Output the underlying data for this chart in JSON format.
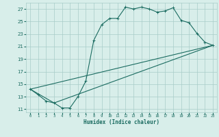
{
  "xlabel": "Humidex (Indice chaleur)",
  "bg_color": "#d8eeea",
  "grid_color": "#a8ccc8",
  "line_color": "#1a6b60",
  "xlim": [
    -0.5,
    23.5
  ],
  "ylim": [
    10.5,
    28.0
  ],
  "xticks": [
    0,
    1,
    2,
    3,
    4,
    5,
    6,
    7,
    8,
    9,
    10,
    11,
    12,
    13,
    14,
    15,
    16,
    17,
    18,
    19,
    20,
    21,
    22,
    23
  ],
  "yticks": [
    11,
    13,
    15,
    17,
    19,
    21,
    23,
    25,
    27
  ],
  "line1": {
    "x": [
      0,
      1,
      2,
      3,
      4,
      5,
      6,
      7,
      8,
      9,
      10,
      11,
      12,
      13,
      14,
      15,
      16,
      17,
      18,
      19,
      20,
      21,
      22,
      23
    ],
    "y": [
      14.2,
      13.3,
      12.3,
      12.0,
      11.2,
      11.2,
      13.0,
      15.5,
      22.0,
      24.5,
      25.5,
      25.5,
      27.3,
      27.0,
      27.3,
      27.0,
      26.5,
      26.7,
      27.2,
      25.2,
      24.8,
      23.1,
      21.7,
      21.2
    ]
  },
  "line2": {
    "x": [
      0,
      3,
      23
    ],
    "y": [
      14.2,
      12.0,
      21.2
    ]
  },
  "line3": {
    "x": [
      0,
      23
    ],
    "y": [
      14.2,
      21.2
    ]
  }
}
